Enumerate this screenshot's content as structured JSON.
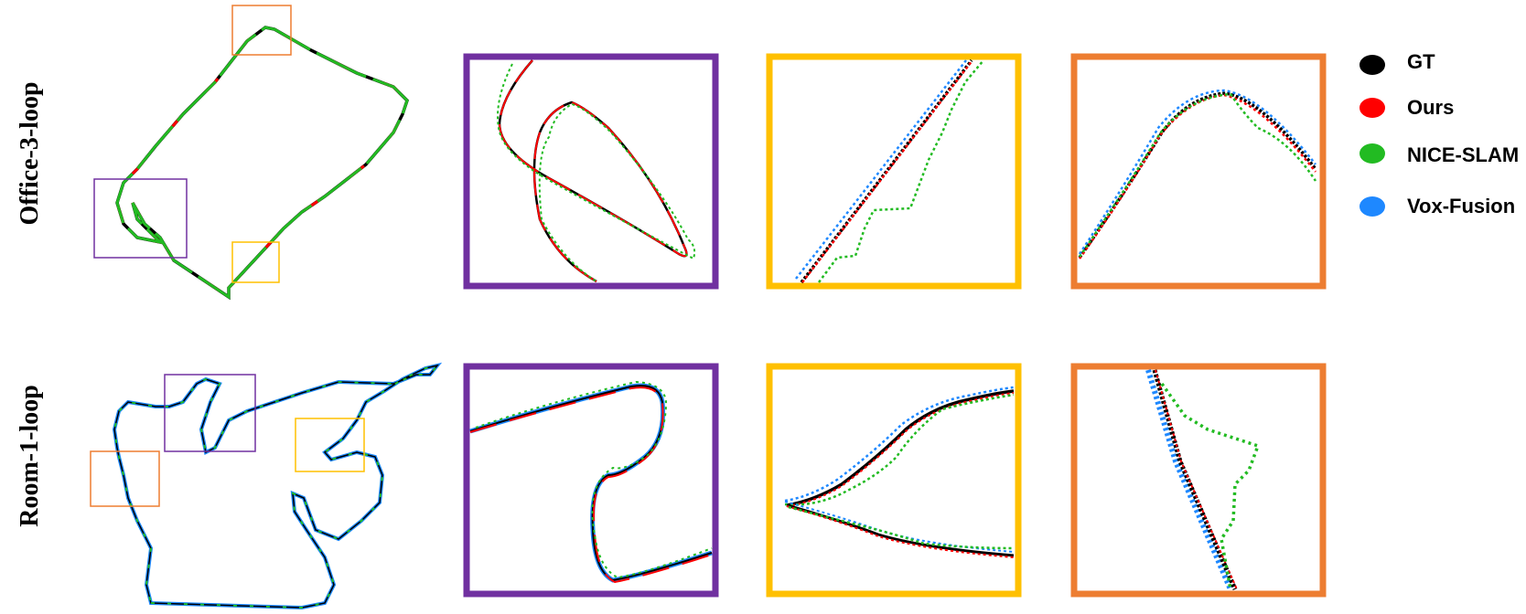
{
  "rows": [
    {
      "label": "Office-3-loop"
    },
    {
      "label": "Room-1-loop"
    }
  ],
  "legend": [
    {
      "label": "GT",
      "color": "#000000"
    },
    {
      "label": "Ours",
      "color": "#ff0000"
    },
    {
      "label": "NICE-SLAM",
      "color": "#22bb22"
    },
    {
      "label": "Vox-Fusion",
      "color": "#1e88ff"
    }
  ],
  "zoom_colors": {
    "purple": "#7030a0",
    "yellow": "#ffc000",
    "orange": "#ed7d31"
  }
}
